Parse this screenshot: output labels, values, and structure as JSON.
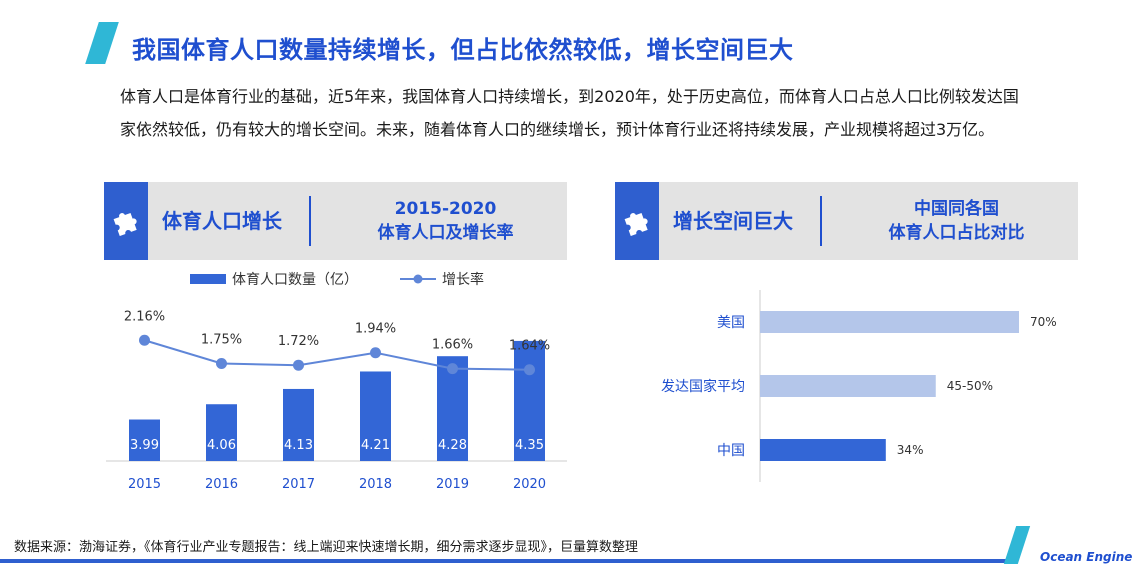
{
  "title": "我国体育人口数量持续增长，但占比依然较低，增长空间巨大",
  "intro": "体育人口是体育行业的基础，近5年来，我国体育人口持续增长，到2020年，处于历史高位，而体育人口占总人口比例较发达国家依然较低，仍有较大的增长空间。未来，随着体育人口的继续增长，预计体育行业还将持续发展，产业规模将超过3万亿。",
  "left_panel": {
    "title": "体育人口增长",
    "sub_line1": "2015-2020",
    "sub_line2": "体育人口及增长率",
    "icon": "puzzle-icon"
  },
  "right_panel": {
    "title": "增长空间巨大",
    "sub_line1": "中国同各国",
    "sub_line2": "体育人口占比对比",
    "icon": "puzzle-icon"
  },
  "colors": {
    "accent": "#1f4fcf",
    "bar": "#3366d6",
    "line": "#5f86d8",
    "light_bar": "#b4c6ea",
    "deco": "#2fb7d6"
  },
  "chart_data": [
    {
      "type": "bar",
      "title": "",
      "categories": [
        "2015",
        "2016",
        "2017",
        "2018",
        "2019",
        "2020"
      ],
      "series": [
        {
          "name": "体育人口数量（亿）",
          "type": "bar",
          "values": [
            3.99,
            4.06,
            4.13,
            4.21,
            4.28,
            4.35
          ],
          "labels": [
            "3.99",
            "4.06",
            "4.13",
            "4.21",
            "4.28",
            "4.35"
          ]
        },
        {
          "name": "增长率",
          "type": "line",
          "values": [
            2.16,
            1.75,
            1.72,
            1.94,
            1.66,
            1.64
          ],
          "labels": [
            "2.16%",
            "1.75%",
            "1.72%",
            "1.94%",
            "1.66%",
            "1.64%"
          ]
        }
      ],
      "legend": "top",
      "grid": false
    },
    {
      "type": "bar",
      "orientation": "horizontal",
      "categories": [
        "美国",
        "发达国家平均",
        "中国"
      ],
      "values": [
        70,
        47.5,
        34
      ],
      "labels": [
        "70%",
        "45-50%",
        "34%"
      ],
      "colors": [
        "#b4c6ea",
        "#b4c6ea",
        "#3366d6"
      ],
      "grid": false
    }
  ],
  "source": "数据来源：渤海证券，《体育行业产业专题报告：线上端迎来快速增长期，细分需求逐步显现》，巨量算数整理",
  "logo": "Ocean Engine"
}
